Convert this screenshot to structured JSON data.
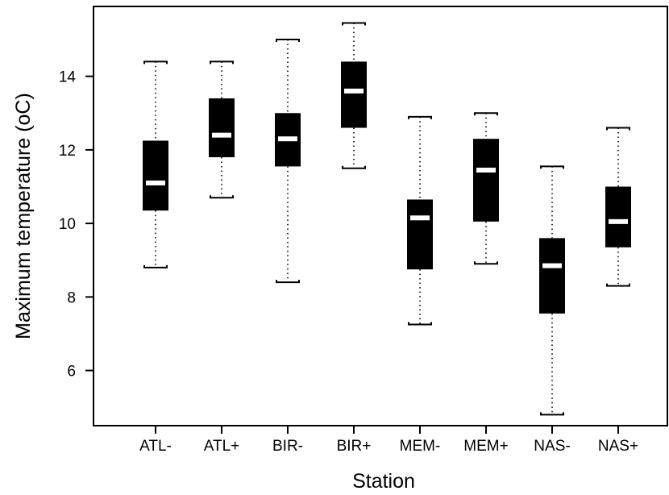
{
  "chart_data": {
    "type": "box",
    "title": "",
    "xlabel": "Station",
    "ylabel": "Maximum temperature (oC)",
    "ylim": [
      4.5,
      15.9
    ],
    "yticks": [
      6,
      8,
      10,
      12,
      14
    ],
    "grid": false,
    "categories": [
      "ATL-",
      "ATL+",
      "BIR-",
      "BIR+",
      "MEM-",
      "MEM+",
      "NAS-",
      "NAS+"
    ],
    "boxes": [
      {
        "min": 8.8,
        "q1": 10.35,
        "median": 11.1,
        "q3": 12.25,
        "max": 14.4
      },
      {
        "min": 10.7,
        "q1": 11.8,
        "median": 12.4,
        "q3": 13.4,
        "max": 14.4
      },
      {
        "min": 8.4,
        "q1": 11.55,
        "median": 12.3,
        "q3": 13.0,
        "max": 15.0
      },
      {
        "min": 11.5,
        "q1": 12.6,
        "median": 13.6,
        "q3": 14.4,
        "max": 15.45
      },
      {
        "min": 7.25,
        "q1": 8.75,
        "median": 10.15,
        "q3": 10.65,
        "max": 12.9
      },
      {
        "min": 8.9,
        "q1": 10.05,
        "median": 11.45,
        "q3": 12.3,
        "max": 13.0
      },
      {
        "min": 4.8,
        "q1": 7.55,
        "median": 8.85,
        "q3": 9.6,
        "max": 11.55
      },
      {
        "min": 8.3,
        "q1": 9.35,
        "median": 10.05,
        "q3": 11.0,
        "max": 12.6
      }
    ]
  }
}
